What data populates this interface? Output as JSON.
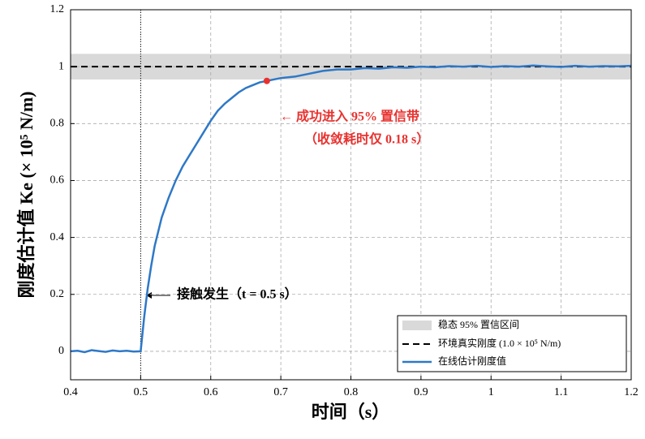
{
  "chart_data": {
    "type": "line",
    "xlabel": "时间（s）",
    "ylabel": "刚度估计值  Ke (× 10⁵ N/m)",
    "xlim": [
      0.4,
      1.2
    ],
    "xticks": [
      0.4,
      0.5,
      0.6,
      0.7,
      0.8,
      0.9,
      1,
      1.1,
      1.2
    ],
    "ylim": [
      -0.1,
      1.2
    ],
    "yticks": [
      0,
      0.2,
      0.4,
      0.6,
      0.8,
      1,
      1.2
    ],
    "grid": true,
    "legend": "lower right",
    "band": {
      "name": "稳态 95% 置信区间",
      "color": "#d9d9d9",
      "lower": 0.955,
      "upper": 1.045
    },
    "reference": {
      "name": "环境真实刚度 (1.0 × 10⁵ N/m)",
      "color": "#000000",
      "value": 1
    },
    "event_x": 0.5,
    "series": [
      {
        "name": "在线估计刚度值",
        "color": "#2e78c7",
        "x": [
          0.4,
          0.41,
          0.42,
          0.43,
          0.44,
          0.45,
          0.46,
          0.47,
          0.48,
          0.49,
          0.5,
          0.505,
          0.51,
          0.515,
          0.52,
          0.53,
          0.54,
          0.55,
          0.56,
          0.57,
          0.58,
          0.59,
          0.6,
          0.61,
          0.62,
          0.63,
          0.64,
          0.65,
          0.66,
          0.67,
          0.68,
          0.69,
          0.7,
          0.72,
          0.74,
          0.76,
          0.78,
          0.8,
          0.82,
          0.84,
          0.86,
          0.88,
          0.9,
          0.92,
          0.94,
          0.96,
          0.98,
          1.0,
          1.02,
          1.04,
          1.06,
          1.08,
          1.1,
          1.12,
          1.14,
          1.16,
          1.18,
          1.2
        ],
        "values": [
          0,
          0.002,
          -0.003,
          0.004,
          0.001,
          -0.002,
          0.003,
          0,
          0.002,
          -0.001,
          0,
          0.12,
          0.22,
          0.3,
          0.37,
          0.47,
          0.54,
          0.6,
          0.65,
          0.69,
          0.73,
          0.77,
          0.81,
          0.845,
          0.87,
          0.89,
          0.91,
          0.925,
          0.935,
          0.945,
          0.95,
          0.955,
          0.96,
          0.965,
          0.975,
          0.985,
          0.99,
          0.99,
          0.995,
          0.993,
          0.998,
          0.996,
          1,
          0.998,
          1.002,
          1,
          1.003,
          0.999,
          1.002,
          1,
          1.004,
          1.001,
          0.999,
          1.003,
          1,
          1.002,
          1.001,
          1.003
        ]
      }
    ],
    "marker": {
      "x": 0.68,
      "y": 0.95,
      "color": "#e8322f"
    },
    "annotations": [
      {
        "text": "← 成功进入 95% 置信带",
        "color": "#e8322f"
      },
      {
        "text": "（收敛耗时仅 0.18 s）",
        "color": "#e8322f"
      },
      {
        "text": "接触发生（t = 0.5 s）",
        "color": "#000000"
      }
    ]
  }
}
